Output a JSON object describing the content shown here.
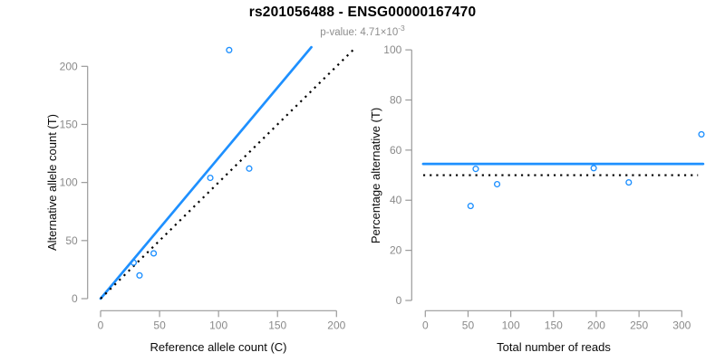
{
  "title": "rs201056488 - ENSG00000167470",
  "subtitle": {
    "prefix": "p-value: ",
    "mantissa": "4.71×10",
    "exponent": "-3"
  },
  "colors": {
    "fit_blue": "#1E90FF",
    "reference_black": "#000000",
    "axis_gray": "#9a9a9a",
    "tick_label_gray": "#8a8a8a"
  },
  "chart_data": [
    {
      "type": "scatter",
      "panel": "left",
      "xlabel": "Reference allele count (C)",
      "ylabel": "Alternative allele count (T)",
      "xlim": [
        0,
        200
      ],
      "ylim": [
        0,
        200
      ],
      "xticks": [
        0,
        50,
        100,
        150,
        200
      ],
      "yticks": [
        0,
        50,
        100,
        150,
        200
      ],
      "grid": false,
      "points": [
        {
          "x": 33,
          "y": 20
        },
        {
          "x": 28,
          "y": 31
        },
        {
          "x": 45,
          "y": 39
        },
        {
          "x": 93,
          "y": 104
        },
        {
          "x": 126,
          "y": 112
        },
        {
          "x": 109,
          "y": 214
        }
      ],
      "lines": [
        {
          "name": "fit-line",
          "style": "solid",
          "color": "#1E90FF",
          "x1": 0,
          "y1": 0,
          "x2": 178.7,
          "y2": 216.5
        },
        {
          "name": "identity-line",
          "style": "dotted",
          "color": "#000000",
          "x1": 0,
          "y1": 0,
          "x2": 214,
          "y2": 214
        }
      ]
    },
    {
      "type": "scatter",
      "panel": "right",
      "xlabel": "Total number of reads",
      "ylabel": "Percentage alternative (T)",
      "xlim": [
        0,
        330
      ],
      "ylim": [
        0,
        100
      ],
      "xticks": [
        0,
        50,
        100,
        150,
        200,
        250,
        300
      ],
      "yticks": [
        0,
        20,
        40,
        60,
        80,
        100
      ],
      "grid": false,
      "points": [
        {
          "x": 53,
          "y": 37.7
        },
        {
          "x": 59,
          "y": 52.5
        },
        {
          "x": 84,
          "y": 46.4
        },
        {
          "x": 197,
          "y": 52.8
        },
        {
          "x": 238,
          "y": 47.1
        },
        {
          "x": 323,
          "y": 66.3
        }
      ],
      "lines": [
        {
          "name": "fit-line",
          "style": "solid",
          "color": "#1E90FF",
          "x1": -2.5,
          "y1": 54.5,
          "x2": 325,
          "y2": 54.5
        },
        {
          "name": "null-line",
          "style": "dotted",
          "color": "#000000",
          "x1": -2.5,
          "y1": 50,
          "x2": 319,
          "y2": 50
        }
      ]
    }
  ]
}
